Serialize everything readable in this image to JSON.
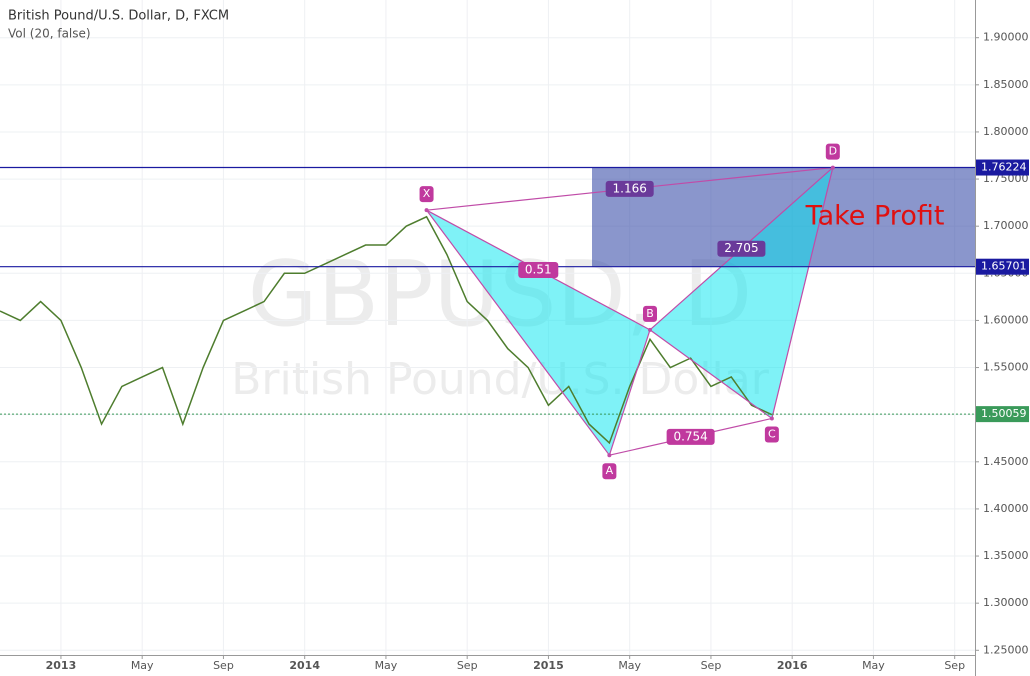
{
  "chart_data": {
    "type": "line",
    "title": "British Pound/U.S. Dollar, D, FXCM",
    "subtitle": "Vol (20, false)",
    "watermark": [
      "GBPUSD, D",
      "British Pound/U.S. Dollar"
    ],
    "x": [
      "2012-10",
      "2012-11",
      "2012-12",
      "2013-01",
      "2013-02",
      "2013-03",
      "2013-04",
      "2013-05",
      "2013-06",
      "2013-07",
      "2013-08",
      "2013-09",
      "2013-10",
      "2013-11",
      "2013-12",
      "2014-01",
      "2014-02",
      "2014-03",
      "2014-04",
      "2014-05",
      "2014-06",
      "2014-07",
      "2014-08",
      "2014-09",
      "2014-10",
      "2014-11",
      "2014-12",
      "2015-01",
      "2015-02",
      "2015-03",
      "2015-04",
      "2015-05",
      "2015-06",
      "2015-07",
      "2015-08",
      "2015-09",
      "2015-10",
      "2015-11",
      "2015-12"
    ],
    "values": [
      1.61,
      1.6,
      1.62,
      1.6,
      1.55,
      1.49,
      1.53,
      1.54,
      1.55,
      1.49,
      1.55,
      1.6,
      1.61,
      1.62,
      1.65,
      1.65,
      1.66,
      1.67,
      1.68,
      1.68,
      1.7,
      1.71,
      1.67,
      1.62,
      1.6,
      1.57,
      1.55,
      1.51,
      1.53,
      1.49,
      1.47,
      1.53,
      1.58,
      1.55,
      1.56,
      1.53,
      1.54,
      1.51,
      1.5
    ],
    "color": "#4e7d2e",
    "xlim": [
      "2012-10",
      "2016-10"
    ],
    "xticks": [
      {
        "value": "2013-01",
        "label": "2013"
      },
      {
        "value": "2013-05",
        "label": "May"
      },
      {
        "value": "2013-09",
        "label": "Sep"
      },
      {
        "value": "2014-01",
        "label": "2014"
      },
      {
        "value": "2014-05",
        "label": "May"
      },
      {
        "value": "2014-09",
        "label": "Sep"
      },
      {
        "value": "2015-01",
        "label": "2015"
      },
      {
        "value": "2015-05",
        "label": "May"
      },
      {
        "value": "2015-09",
        "label": "Sep"
      },
      {
        "value": "2016-01",
        "label": "2016"
      },
      {
        "value": "2016-05",
        "label": "May"
      },
      {
        "value": "2016-09",
        "label": "Sep"
      }
    ],
    "ylim": [
      1.245,
      1.94
    ],
    "yticks": [
      {
        "value": 1.25,
        "label": "1.25000"
      },
      {
        "value": 1.3,
        "label": "1.30000"
      },
      {
        "value": 1.35,
        "label": "1.35000"
      },
      {
        "value": 1.4,
        "label": "1.40000"
      },
      {
        "value": 1.45,
        "label": "1.45000"
      },
      {
        "value": 1.5,
        "label": "1.50000"
      },
      {
        "value": 1.55,
        "label": "1.55000"
      },
      {
        "value": 1.6,
        "label": "1.60000"
      },
      {
        "value": 1.65,
        "label": "1.65000"
      },
      {
        "value": 1.7,
        "label": "1.70000"
      },
      {
        "value": 1.75,
        "label": "1.75000"
      },
      {
        "value": 1.8,
        "label": "1.80000"
      },
      {
        "value": 1.85,
        "label": "1.85000"
      },
      {
        "value": 1.9,
        "label": "1.90000"
      }
    ],
    "grid": true,
    "levels": [
      1.76224,
      1.65701
    ],
    "last_price": 1.50059,
    "take_profit": "Take Profit",
    "pattern": {
      "labels": [
        "X",
        "A",
        "B",
        "C",
        "D"
      ],
      "x": [
        "2014-07",
        "2015-04",
        "2015-06",
        "2015-12",
        "2016-03"
      ],
      "values": [
        1.717,
        1.457,
        1.59,
        1.496,
        1.7622
      ]
    },
    "ratio_labels": [
      "1.166",
      "0.51",
      "2.705",
      "0.754"
    ]
  }
}
